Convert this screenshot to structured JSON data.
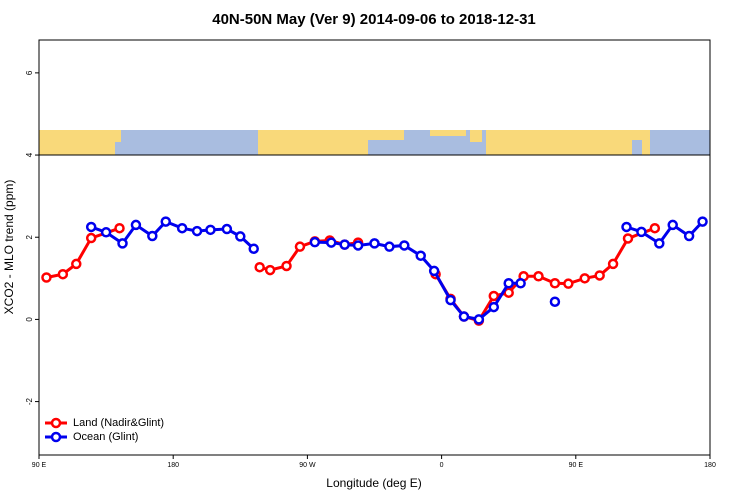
{
  "chart_data": {
    "type": "line",
    "title": "40N-50N May (Ver 9)   2014-09-06 to 2018-12-31",
    "x_label": "Longitude (deg E)",
    "y_label": "XCO2 - MLO trend (ppm)",
    "xlim": [
      90,
      540
    ],
    "ylim": [
      -3.3,
      6.8
    ],
    "xticks": [
      {
        "value": 90,
        "label": "90 E"
      },
      180,
      {
        "value": 270,
        "label": "90 W"
      },
      {
        "value": 360,
        "label": "0"
      },
      {
        "value": 450,
        "label": "90 E"
      },
      {
        "value": 540,
        "label": "180"
      }
    ],
    "yticks": [
      -2,
      0,
      2,
      4,
      6
    ],
    "legend": "bottom-left",
    "series": [
      {
        "name": "Land (Nadir&Glint)",
        "color": "#ff0000",
        "x": [
          95,
          106,
          115,
          125,
          144,
          190,
          238,
          245,
          256,
          265,
          275,
          285,
          295,
          304,
          330,
          356,
          366,
          375,
          385,
          395,
          405,
          415,
          425,
          436,
          445,
          456,
          466,
          475,
          485,
          503
        ],
        "values": [
          1.02,
          1.1,
          1.35,
          1.98,
          2.22,
          null,
          1.27,
          1.2,
          1.3,
          1.77,
          1.9,
          1.92,
          1.82,
          1.87,
          null,
          1.1,
          0.5,
          0.07,
          -0.03,
          0.57,
          0.65,
          1.05,
          1.05,
          0.88,
          0.87,
          1.0,
          1.07,
          1.35,
          1.97,
          2.22
        ]
      },
      {
        "name": "Ocean (Glint)",
        "color": "#0000ee",
        "x": [
          125,
          135,
          146,
          155,
          166,
          175,
          186,
          196,
          205,
          216,
          225,
          234,
          255,
          275,
          286,
          295,
          304,
          315,
          325,
          335,
          346,
          355,
          366,
          375,
          385,
          395,
          405,
          413,
          425,
          436,
          460,
          484,
          494,
          506,
          515,
          526,
          535
        ],
        "values": [
          2.25,
          2.12,
          1.85,
          2.3,
          2.03,
          2.38,
          2.22,
          2.15,
          2.18,
          2.2,
          2.02,
          1.72,
          null,
          1.88,
          1.87,
          1.82,
          1.8,
          1.85,
          1.77,
          1.8,
          1.55,
          1.18,
          0.47,
          0.07,
          0.0,
          0.3,
          0.88,
          0.88,
          null,
          0.43,
          null,
          2.25,
          2.13,
          1.85,
          2.3,
          2.03,
          2.38
        ]
      }
    ]
  }
}
